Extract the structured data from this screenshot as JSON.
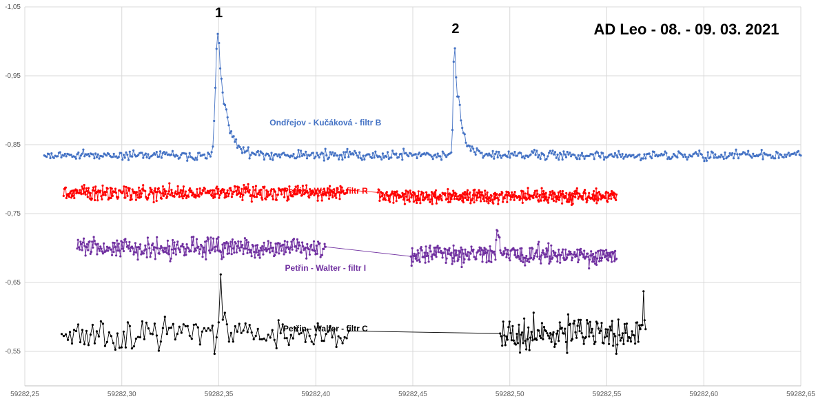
{
  "chart_data": {
    "type": "scatter",
    "title": "AD Leo - 08. - 09. 03. 2021",
    "xlabel": "",
    "ylabel": "",
    "xlim": [
      59282.25,
      59282.65
    ],
    "ylim": [
      -1.05,
      -0.5
    ],
    "y_reversed": true,
    "grid": true,
    "legend": "none (series labeled inline)",
    "x_ticks": [
      "59282,25",
      "59282,30",
      "59282,35",
      "59282,40",
      "59282,45",
      "59282,50",
      "59282,55",
      "59282,60",
      "59282,65"
    ],
    "y_ticks": [
      "-1,05",
      "-0,95",
      "-0,85",
      "-0,75",
      "-0,65",
      "-0,55"
    ],
    "annotations": [
      {
        "text": "1",
        "x": 59282.35,
        "y": -1.035
      },
      {
        "text": "2",
        "x": 59282.472,
        "y": -1.012
      }
    ],
    "series": [
      {
        "name": "Ondřejov - Kučáková - filtr B",
        "color": "#4472C4",
        "label_at": [
          59282.405,
          -0.878
        ],
        "segments": [
          {
            "x_start": 59282.26,
            "x_end": 59282.65,
            "base": -0.835,
            "noise": 0.006,
            "flares": [
              {
                "x": 59282.3495,
                "peak": -1.02,
                "rise": 0.0012,
                "decay": 0.004
              },
              {
                "x": 59282.4715,
                "peak": -0.995,
                "rise": 0.0006,
                "decay": 0.003
              }
            ]
          }
        ],
        "points_per_segment": 620
      },
      {
        "name": "Petřin - Walter - filtr R",
        "color": "#FF0000",
        "label_at": [
          59282.405,
          -0.779
        ],
        "segments": [
          {
            "x_start": 59282.27,
            "x_end": 59282.416,
            "base": -0.78,
            "noise": 0.009
          },
          {
            "x_start": 59282.432,
            "x_end": 59282.555,
            "base": -0.775,
            "noise": 0.009
          }
        ],
        "points_per_segment": 400
      },
      {
        "name": "Petřin - Walter - filtr I",
        "color": "#7030A0",
        "label_at": [
          59282.405,
          -0.667
        ],
        "segments": [
          {
            "x_start": 59282.277,
            "x_end": 59282.405,
            "base": -0.7,
            "noise": 0.012
          },
          {
            "x_start": 59282.449,
            "x_end": 59282.555,
            "base": -0.69,
            "noise": 0.012,
            "flares": [
              {
                "x": 59282.4935,
                "peak": -0.725,
                "rise": 0.0003,
                "decay": 0.002
              }
            ]
          }
        ],
        "points_per_segment": 300
      },
      {
        "name": "Petřin - Walter - filtr C",
        "color": "#000000",
        "label_at": [
          59282.405,
          -0.579
        ],
        "segments": [
          {
            "x_start": 59282.269,
            "x_end": 59282.417,
            "base": -0.575,
            "noise": 0.02,
            "flares": [
              {
                "x": 59282.3505,
                "peak": -0.66,
                "rise": 0.0003,
                "decay": 0.0015
              }
            ]
          },
          {
            "x_start": 59282.495,
            "x_end": 59282.57,
            "base": -0.575,
            "noise": 0.02,
            "flares": [
              {
                "x": 59282.569,
                "peak": -0.625,
                "rise": 0.0005,
                "decay": 0.0005
              }
            ]
          }
        ],
        "points_per_segment": 140
      }
    ]
  }
}
